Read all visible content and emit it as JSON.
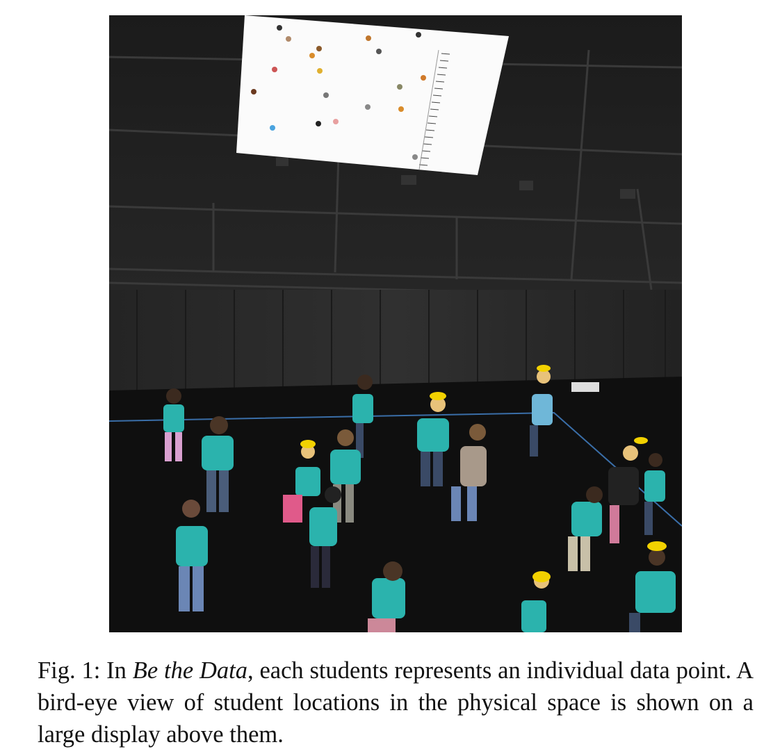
{
  "figure": {
    "caption_prefix": "Fig. 1: In ",
    "caption_title": "Be the Data",
    "caption_rest": ", each students represents an individual data point. A bird-eye view of student locations in the physical space is shown on a large display above them.",
    "colors": {
      "stage_floor": "#0f0f0f",
      "curtain": "#2a2a2a",
      "shirt": "#2bb3ad",
      "hat_yellow": "#f2d100",
      "tape_line": "#3a6ea8"
    }
  }
}
